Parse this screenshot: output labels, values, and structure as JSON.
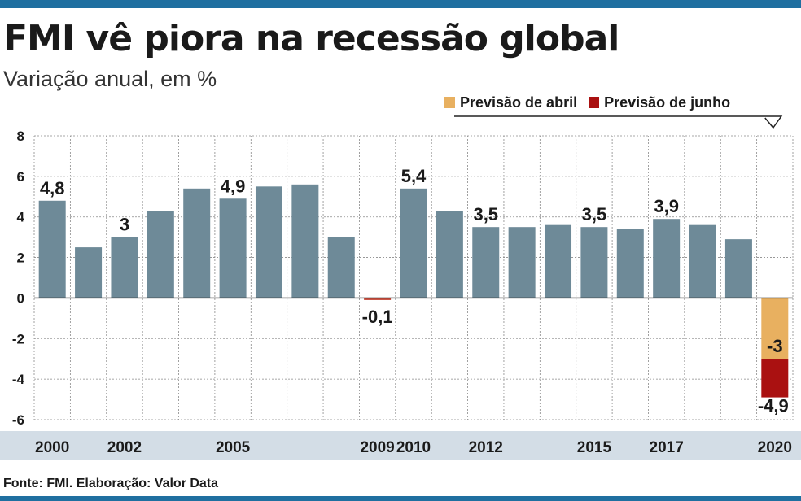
{
  "title": "FMI vê piora na recessão global",
  "subtitle": "Variação anual, em %",
  "source": "Fonte: FMI. Elaboração: Valor Data",
  "colors": {
    "bar": "#6e8a98",
    "negative_small": "#c44a3a",
    "april": "#e8b060",
    "june": "#aa1111",
    "accent": "#1f6fa0",
    "axis_band": "#d3dde6"
  },
  "legend": [
    {
      "label": "Previsão de abril",
      "color": "#e8b060"
    },
    {
      "label": "Previsão de junho",
      "color": "#aa1111"
    }
  ],
  "chart_data": {
    "type": "bar",
    "title": "FMI vê piora na recessão global",
    "ylabel": "Variação anual, em %",
    "ylim": [
      -6,
      8
    ],
    "yticks": [
      8,
      6,
      4,
      2,
      0,
      -2,
      -4,
      -6
    ],
    "categories": [
      "2000",
      "2001",
      "2002",
      "2003",
      "2004",
      "2005",
      "2006",
      "2007",
      "2008",
      "2009",
      "2010",
      "2011",
      "2012",
      "2013",
      "2014",
      "2015",
      "2016",
      "2017",
      "2018",
      "2019",
      "2020"
    ],
    "x_labels": [
      "2000",
      "",
      "2002",
      "",
      "",
      "2005",
      "",
      "",
      "",
      "2009",
      "2010",
      "",
      "2012",
      "",
      "",
      "2015",
      "",
      "2017",
      "",
      "",
      "2020"
    ],
    "values": [
      4.8,
      2.5,
      3.0,
      4.3,
      5.4,
      4.9,
      5.5,
      5.6,
      3.0,
      -0.1,
      5.4,
      4.3,
      3.5,
      3.5,
      3.6,
      3.5,
      3.4,
      3.9,
      3.6,
      2.9,
      -4.9
    ],
    "data_labels": [
      "4,8",
      "",
      "3",
      "",
      "",
      "4,9",
      "",
      "",
      "",
      "-0,1",
      "5,4",
      "",
      "3,5",
      "",
      "",
      "3,5",
      "",
      "3,9",
      "",
      "",
      ""
    ],
    "forecast_2020": [
      {
        "name": "Previsão de abril",
        "value": -3,
        "label": "-3"
      },
      {
        "name": "Previsão de junho",
        "value": -4.9,
        "label": "-4,9"
      }
    ],
    "grid": true
  }
}
